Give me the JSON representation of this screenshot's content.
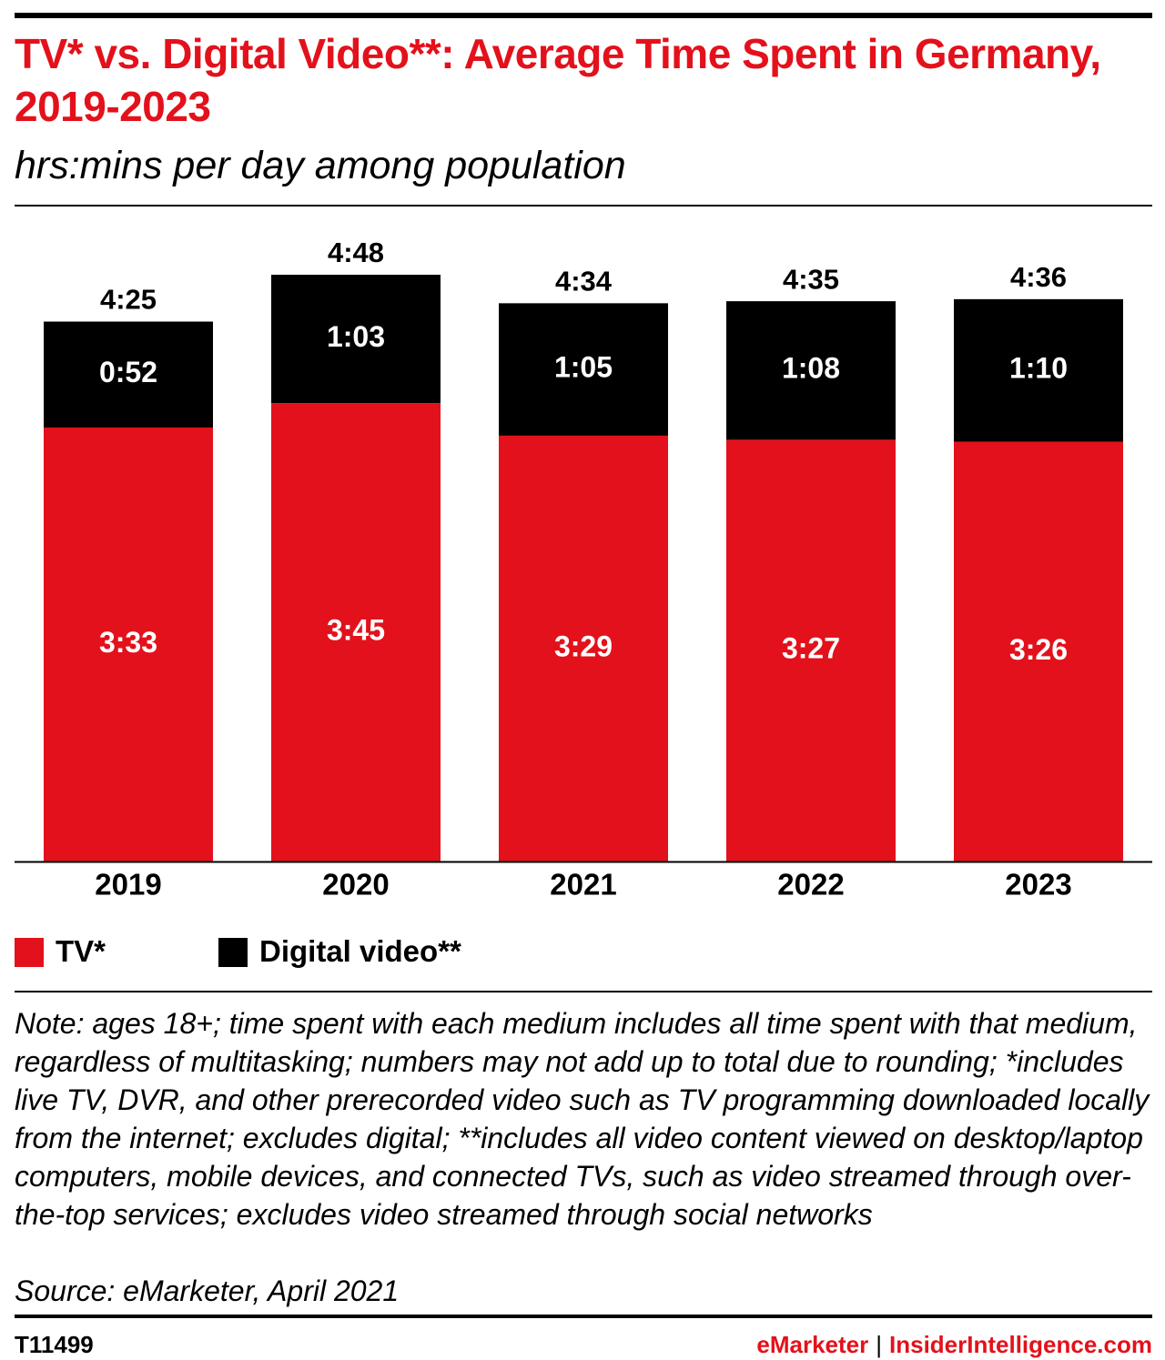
{
  "header": {
    "title": "TV* vs. Digital Video**: Average Time Spent in Germany, 2019-2023",
    "subtitle": "hrs:mins per day among population"
  },
  "chart_data": {
    "type": "bar",
    "stacked": true,
    "categories": [
      "2019",
      "2020",
      "2021",
      "2022",
      "2023"
    ],
    "series": [
      {
        "name": "TV*",
        "color": "#e3111b",
        "values": [
          213,
          225,
          209,
          207,
          206
        ],
        "labels": [
          "3:33",
          "3:45",
          "3:29",
          "3:27",
          "3:26"
        ]
      },
      {
        "name": "Digital video**",
        "color": "#000000",
        "values": [
          52,
          63,
          65,
          68,
          70
        ],
        "labels": [
          "0:52",
          "1:03",
          "1:05",
          "1:08",
          "1:10"
        ]
      }
    ],
    "totals": [
      "4:25",
      "4:48",
      "4:34",
      "4:35",
      "4:36"
    ],
    "value_units": "minutes per day",
    "ylim": [
      0,
      288
    ],
    "grid": false,
    "legend": "bottom-left"
  },
  "legend": {
    "items": [
      {
        "label": "TV*",
        "color": "#e3111b"
      },
      {
        "label": "Digital video**",
        "color": "#000000"
      }
    ]
  },
  "footnote": {
    "note": "Note: ages 18+; time spent with each medium includes all time spent with that medium, regardless of multitasking; numbers may not add up to total due to rounding; *includes live TV, DVR, and other prerecorded video such as TV programming downloaded locally from the internet; excludes digital; **includes all video content viewed on desktop/laptop computers, mobile devices, and connected TVs, such as video streamed through over-the-top services; excludes video streamed through social networks",
    "source": "Source: eMarketer, April 2021"
  },
  "footer": {
    "id": "T11499",
    "brand_primary": "eMarketer",
    "separator": "|",
    "brand_secondary": "InsiderIntelligence.com"
  }
}
